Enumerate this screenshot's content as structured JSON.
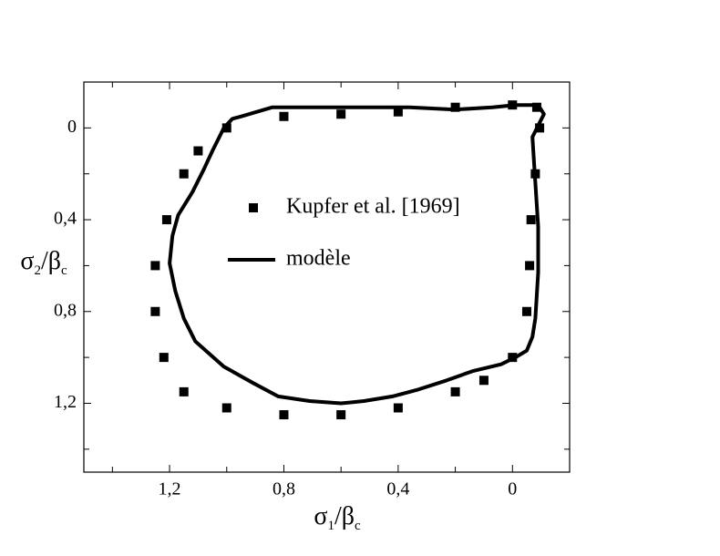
{
  "chart_data": {
    "type": "scatter",
    "xlim": [
      -0.2,
      1.5
    ],
    "x_inverted": true,
    "ylim": [
      -0.2,
      1.5
    ],
    "y_inverted": true,
    "xticks": [
      {
        "value": 1.2,
        "label": "1,2"
      },
      {
        "value": 0.8,
        "label": "0,8"
      },
      {
        "value": 0.4,
        "label": "0,4"
      },
      0
    ],
    "xminor_ticks": [
      1.4,
      1.0,
      0.6,
      0.2,
      -0.2
    ],
    "yticks": [
      0,
      {
        "value": 0.4,
        "label": "0,4"
      },
      {
        "value": 0.8,
        "label": "0,8"
      },
      {
        "value": 1.2,
        "label": "1,2"
      }
    ],
    "yminor_ticks": [
      -0.2,
      0.2,
      0.6,
      1.0,
      1.4
    ],
    "grid": false,
    "legend": "center",
    "xlabel": [
      {
        "text": "σ"
      },
      {
        "text": "1",
        "sub": true
      },
      {
        "text": "/"
      },
      {
        "text": "β"
      },
      {
        "text": "c",
        "sub": true
      }
    ],
    "ylabel": [
      {
        "text": "σ"
      },
      {
        "text": "2",
        "sub": true
      },
      {
        "text": "/"
      },
      {
        "text": "β"
      },
      {
        "text": "c",
        "sub": true
      }
    ],
    "series": [
      {
        "name": "Kupfer et al. [1969]",
        "type": "scatter",
        "color": "#000000",
        "x": [
          1.0,
          1.1,
          1.15,
          1.21,
          1.25,
          1.25,
          1.22,
          1.15,
          1.0,
          0.8,
          0.6,
          0.4,
          0.2,
          0.1,
          0.0,
          -0.05,
          -0.06,
          -0.065,
          -0.08,
          -0.095,
          -0.085,
          0.0,
          0.2,
          0.4,
          0.6,
          0.8
        ],
        "y": [
          0.0,
          0.1,
          0.2,
          0.4,
          0.6,
          0.8,
          1.0,
          1.15,
          1.22,
          1.25,
          1.25,
          1.22,
          1.15,
          1.1,
          1.0,
          0.8,
          0.6,
          0.4,
          0.2,
          0.0,
          -0.09,
          -0.1,
          -0.09,
          -0.07,
          -0.06,
          -0.05
        ]
      },
      {
        "name": "modèle",
        "type": "line",
        "color": "#000000",
        "x": [
          0.95,
          0.84,
          0.68,
          0.36,
          0.2,
          0.07,
          -0.01,
          -0.09,
          -0.11,
          -0.07,
          -0.08,
          -0.09,
          -0.09,
          -0.08,
          -0.07,
          -0.05,
          -0.01,
          0.04,
          0.14,
          0.23,
          0.33,
          0.42,
          0.52,
          0.6,
          0.71,
          0.82,
          0.91,
          1.01,
          1.11,
          1.15,
          1.18,
          1.2,
          1.19,
          1.17,
          1.12,
          1.08,
          1.05,
          1.01,
          0.98,
          0.95
        ],
        "y": [
          -0.05,
          -0.09,
          -0.09,
          -0.09,
          -0.08,
          -0.09,
          -0.1,
          -0.1,
          -0.06,
          0.04,
          0.24,
          0.43,
          0.63,
          0.83,
          0.91,
          0.97,
          1.0,
          1.03,
          1.06,
          1.1,
          1.14,
          1.17,
          1.19,
          1.2,
          1.19,
          1.17,
          1.11,
          1.04,
          0.93,
          0.83,
          0.71,
          0.59,
          0.47,
          0.38,
          0.28,
          0.18,
          0.1,
          0.0,
          -0.04,
          -0.05
        ]
      }
    ]
  }
}
